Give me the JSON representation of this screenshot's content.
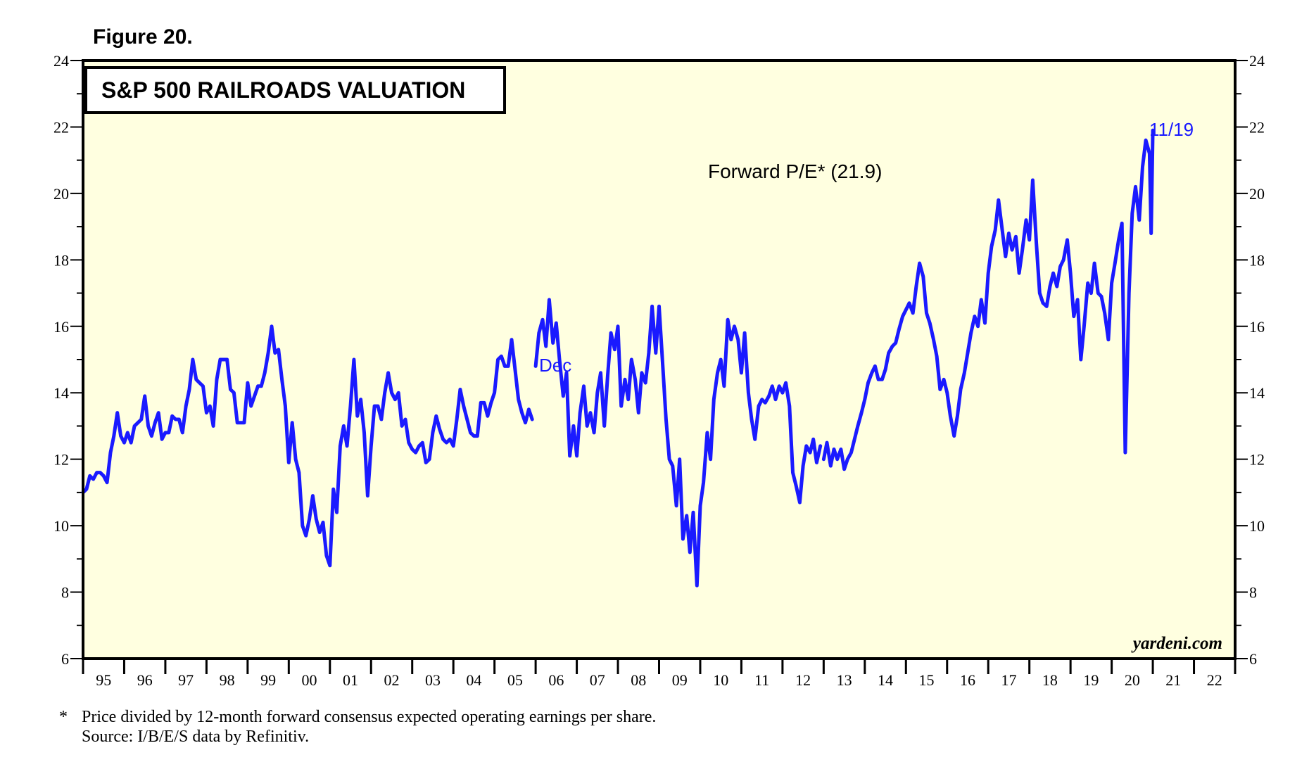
{
  "figure_label": "Figure 20.",
  "footnote": {
    "marker": "*",
    "line1": "Price divided by 12-month forward consensus expected operating earnings per share.",
    "line2": "Source: I/B/E/S data by Refinitiv."
  },
  "colors": {
    "plot_background": "#ffffe0",
    "series": "#1a1aff",
    "axis": "#000000"
  },
  "chart_data": {
    "type": "line",
    "title": "S&P 500 RAILROADS VALUATION",
    "annotation": "Forward P/E* (21.9)",
    "series_name": "Forward P/E",
    "latest_value": 21.9,
    "latest_label": "11/19",
    "marker_label": "Dec",
    "credit": "yardeni.com",
    "xlabel": "",
    "ylabel": "",
    "xlim": [
      1995,
      2023
    ],
    "ylim": [
      6,
      24
    ],
    "y_ticks": [
      6,
      8,
      10,
      12,
      14,
      16,
      18,
      20,
      22,
      24
    ],
    "x_tick_labels": [
      "95",
      "96",
      "97",
      "98",
      "99",
      "00",
      "01",
      "02",
      "03",
      "04",
      "05",
      "06",
      "07",
      "08",
      "09",
      "10",
      "11",
      "12",
      "13",
      "14",
      "15",
      "16",
      "17",
      "18",
      "19",
      "20",
      "21",
      "22"
    ],
    "monthly_1995_2005": [
      11.0,
      11.1,
      11.5,
      11.4,
      11.6,
      11.6,
      11.5,
      11.3,
      12.2,
      12.7,
      13.4,
      12.7,
      12.5,
      12.8,
      12.5,
      13.0,
      13.1,
      13.2,
      13.9,
      13.0,
      12.7,
      13.1,
      13.4,
      12.6,
      12.8,
      12.8,
      13.3,
      13.2,
      13.2,
      12.8,
      13.6,
      14.1,
      15.0,
      14.4,
      14.3,
      14.2,
      13.4,
      13.6,
      13.0,
      14.4,
      15.0,
      15.0,
      15.0,
      14.1,
      14.0,
      13.1,
      13.1,
      13.1,
      14.3,
      13.6,
      13.9,
      14.2,
      14.2,
      14.6,
      15.2,
      16.0,
      15.2,
      15.3,
      14.4,
      13.6,
      11.9,
      13.1,
      12.0,
      11.6,
      10.0,
      9.7,
      10.2,
      10.9,
      10.2,
      9.8,
      10.1,
      9.1,
      8.8,
      11.1,
      10.4,
      12.4,
      13.0,
      12.4,
      13.6,
      15.0,
      13.3,
      13.8,
      12.8,
      10.9,
      12.4,
      13.6,
      13.6,
      13.2,
      14.0,
      14.6,
      14.0,
      13.8,
      14.0,
      13.0,
      13.2,
      12.5,
      12.3,
      12.2,
      12.4,
      12.5,
      11.9,
      12.0,
      12.8,
      13.3,
      12.9,
      12.6,
      12.5,
      12.6,
      12.4,
      13.2,
      14.1,
      13.6,
      13.2,
      12.8,
      12.7,
      12.7,
      13.7,
      13.7,
      13.3,
      13.7,
      14.0,
      15.0,
      15.1,
      14.8,
      14.8,
      15.6,
      14.7,
      13.8,
      13.4,
      13.1,
      13.5,
      13.2
    ],
    "segment_2006_2012": [
      [
        2006.0,
        14.8
      ],
      [
        2006.08,
        15.8
      ],
      [
        2006.17,
        16.2
      ],
      [
        2006.25,
        15.4
      ],
      [
        2006.33,
        16.8
      ],
      [
        2006.42,
        15.5
      ],
      [
        2006.5,
        16.1
      ],
      [
        2006.58,
        15.0
      ],
      [
        2006.67,
        13.9
      ],
      [
        2006.75,
        14.6
      ],
      [
        2006.83,
        12.1
      ],
      [
        2006.92,
        13.0
      ],
      [
        2007.0,
        12.1
      ],
      [
        2007.08,
        13.4
      ],
      [
        2007.17,
        14.2
      ],
      [
        2007.25,
        13.0
      ],
      [
        2007.33,
        13.4
      ],
      [
        2007.42,
        12.8
      ],
      [
        2007.5,
        14.0
      ],
      [
        2007.58,
        14.6
      ],
      [
        2007.67,
        13.0
      ],
      [
        2007.75,
        14.5
      ],
      [
        2007.83,
        15.8
      ],
      [
        2007.92,
        15.3
      ],
      [
        2008.0,
        16.0
      ],
      [
        2008.08,
        13.6
      ],
      [
        2008.17,
        14.4
      ],
      [
        2008.25,
        13.8
      ],
      [
        2008.33,
        15.0
      ],
      [
        2008.42,
        14.4
      ],
      [
        2008.5,
        13.4
      ],
      [
        2008.58,
        14.6
      ],
      [
        2008.67,
        14.3
      ],
      [
        2008.75,
        15.2
      ],
      [
        2008.83,
        16.6
      ],
      [
        2008.92,
        15.2
      ],
      [
        2009.0,
        16.6
      ],
      [
        2009.08,
        15.0
      ],
      [
        2009.17,
        13.2
      ],
      [
        2009.25,
        12.0
      ],
      [
        2009.33,
        11.8
      ],
      [
        2009.42,
        10.6
      ],
      [
        2009.5,
        12.0
      ],
      [
        2009.58,
        9.6
      ],
      [
        2009.67,
        10.3
      ],
      [
        2009.75,
        9.2
      ],
      [
        2009.83,
        10.4
      ],
      [
        2009.92,
        8.2
      ],
      [
        2010.0,
        10.6
      ],
      [
        2010.08,
        11.3
      ],
      [
        2010.17,
        12.8
      ],
      [
        2010.25,
        12.0
      ],
      [
        2010.33,
        13.8
      ],
      [
        2010.42,
        14.6
      ],
      [
        2010.5,
        15.0
      ],
      [
        2010.58,
        14.2
      ],
      [
        2010.67,
        16.2
      ],
      [
        2010.75,
        15.6
      ],
      [
        2010.83,
        16.0
      ],
      [
        2010.92,
        15.6
      ],
      [
        2011.0,
        14.6
      ],
      [
        2011.08,
        15.8
      ],
      [
        2011.17,
        14.0
      ],
      [
        2011.25,
        13.2
      ],
      [
        2011.33,
        12.6
      ],
      [
        2011.42,
        13.6
      ],
      [
        2011.5,
        13.8
      ],
      [
        2011.58,
        13.7
      ],
      [
        2011.67,
        13.9
      ],
      [
        2011.75,
        14.2
      ],
      [
        2011.83,
        13.8
      ],
      [
        2011.92,
        14.2
      ],
      [
        2012.0,
        14.0
      ],
      [
        2012.08,
        14.3
      ],
      [
        2012.17,
        13.6
      ],
      [
        2012.25,
        11.6
      ],
      [
        2012.33,
        11.2
      ],
      [
        2012.42,
        10.7
      ],
      [
        2012.5,
        11.8
      ],
      [
        2012.58,
        12.4
      ],
      [
        2012.67,
        12.2
      ],
      [
        2012.75,
        12.6
      ],
      [
        2012.83,
        11.9
      ],
      [
        2012.92,
        12.4
      ]
    ],
    "segment_2013_2020": [
      [
        2013.0,
        12.0
      ],
      [
        2013.08,
        12.5
      ],
      [
        2013.17,
        11.8
      ],
      [
        2013.25,
        12.3
      ],
      [
        2013.33,
        12.0
      ],
      [
        2013.42,
        12.3
      ],
      [
        2013.5,
        11.7
      ],
      [
        2013.58,
        12.0
      ],
      [
        2013.67,
        12.2
      ],
      [
        2013.75,
        12.6
      ],
      [
        2013.83,
        13.0
      ],
      [
        2013.92,
        13.4
      ],
      [
        2014.0,
        13.8
      ],
      [
        2014.08,
        14.3
      ],
      [
        2014.17,
        14.6
      ],
      [
        2014.25,
        14.8
      ],
      [
        2014.33,
        14.4
      ],
      [
        2014.42,
        14.4
      ],
      [
        2014.5,
        14.7
      ],
      [
        2014.58,
        15.2
      ],
      [
        2014.67,
        15.4
      ],
      [
        2014.75,
        15.5
      ],
      [
        2014.83,
        15.9
      ],
      [
        2014.92,
        16.3
      ],
      [
        2015.0,
        16.5
      ],
      [
        2015.08,
        16.7
      ],
      [
        2015.17,
        16.4
      ],
      [
        2015.25,
        17.2
      ],
      [
        2015.33,
        17.9
      ],
      [
        2015.42,
        17.5
      ],
      [
        2015.5,
        16.4
      ],
      [
        2015.58,
        16.1
      ],
      [
        2015.67,
        15.6
      ],
      [
        2015.75,
        15.1
      ],
      [
        2015.83,
        14.1
      ],
      [
        2015.92,
        14.4
      ],
      [
        2016.0,
        14.0
      ],
      [
        2016.08,
        13.3
      ],
      [
        2016.17,
        12.7
      ],
      [
        2016.25,
        13.3
      ],
      [
        2016.33,
        14.1
      ],
      [
        2016.42,
        14.6
      ],
      [
        2016.5,
        15.2
      ],
      [
        2016.58,
        15.8
      ],
      [
        2016.67,
        16.3
      ],
      [
        2016.75,
        16.0
      ],
      [
        2016.83,
        16.8
      ],
      [
        2016.92,
        16.1
      ],
      [
        2017.0,
        17.6
      ],
      [
        2017.08,
        18.4
      ],
      [
        2017.17,
        18.9
      ],
      [
        2017.25,
        19.8
      ],
      [
        2017.33,
        19.0
      ],
      [
        2017.42,
        18.1
      ],
      [
        2017.5,
        18.8
      ],
      [
        2017.58,
        18.3
      ],
      [
        2017.67,
        18.7
      ],
      [
        2017.75,
        17.6
      ],
      [
        2017.83,
        18.3
      ],
      [
        2017.92,
        19.2
      ],
      [
        2018.0,
        18.6
      ],
      [
        2018.08,
        20.4
      ],
      [
        2018.17,
        18.5
      ],
      [
        2018.25,
        17.0
      ],
      [
        2018.33,
        16.7
      ],
      [
        2018.42,
        16.6
      ],
      [
        2018.5,
        17.2
      ],
      [
        2018.58,
        17.6
      ],
      [
        2018.67,
        17.2
      ],
      [
        2018.75,
        17.8
      ],
      [
        2018.83,
        18.0
      ],
      [
        2018.92,
        18.6
      ],
      [
        2019.0,
        17.6
      ],
      [
        2019.08,
        16.3
      ],
      [
        2019.17,
        16.8
      ],
      [
        2019.25,
        15.0
      ],
      [
        2019.33,
        16.0
      ],
      [
        2019.42,
        17.3
      ],
      [
        2019.5,
        17.0
      ],
      [
        2019.58,
        17.9
      ],
      [
        2019.67,
        17.0
      ],
      [
        2019.75,
        16.9
      ],
      [
        2019.83,
        16.4
      ],
      [
        2019.92,
        15.6
      ],
      [
        2020.0,
        17.3
      ],
      [
        2020.08,
        17.9
      ],
      [
        2020.17,
        18.6
      ],
      [
        2020.25,
        19.1
      ],
      [
        2020.33,
        12.2
      ],
      [
        2020.42,
        17.0
      ],
      [
        2020.5,
        19.4
      ],
      [
        2020.58,
        20.2
      ],
      [
        2020.67,
        19.2
      ],
      [
        2020.75,
        20.8
      ],
      [
        2020.83,
        21.6
      ],
      [
        2020.92,
        21.2
      ],
      [
        2020.96,
        18.8
      ],
      [
        2021.0,
        21.9
      ]
    ]
  }
}
